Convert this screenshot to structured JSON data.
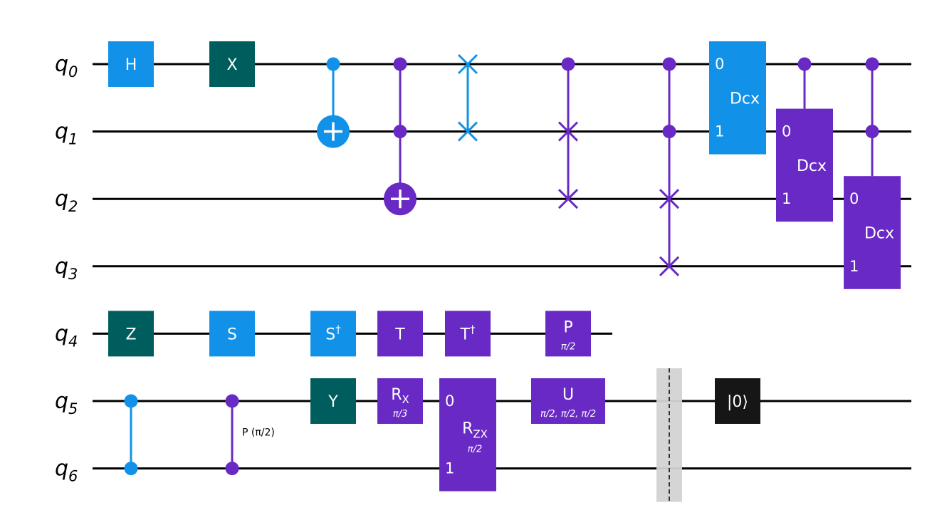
{
  "colors": {
    "blue": "#1192e8",
    "teal": "#005d5d",
    "purple": "#6929c4",
    "black": "#161616",
    "barrier": "#d3d3d3",
    "wire": "#000000"
  },
  "qubits": [
    {
      "base": "q",
      "index": "0"
    },
    {
      "base": "q",
      "index": "1"
    },
    {
      "base": "q",
      "index": "2"
    },
    {
      "base": "q",
      "index": "3"
    },
    {
      "base": "q",
      "index": "4"
    },
    {
      "base": "q",
      "index": "5"
    },
    {
      "base": "q",
      "index": "6"
    }
  ],
  "gates": [
    {
      "name": "gate-h",
      "type": "box",
      "col": 0,
      "qubit": 0,
      "label": "H",
      "color": "blue"
    },
    {
      "name": "gate-x",
      "type": "box",
      "col": 1,
      "qubit": 0,
      "label": "X",
      "color": "teal"
    },
    {
      "name": "gate-z",
      "type": "box",
      "col": 0,
      "qubit": 4,
      "label": "Z",
      "color": "teal"
    },
    {
      "name": "gate-s",
      "type": "box",
      "col": 1,
      "qubit": 4,
      "label": "S",
      "color": "blue"
    },
    {
      "name": "gate-sdg",
      "type": "box",
      "col": 2,
      "qubit": 4,
      "label": "S",
      "sup": "†",
      "color": "blue"
    },
    {
      "name": "gate-y",
      "type": "box",
      "col": 2,
      "qubit": 5,
      "label": "Y",
      "color": "teal"
    },
    {
      "name": "gate-t",
      "type": "box",
      "col": 3,
      "qubit": 4,
      "label": "T",
      "color": "purple"
    },
    {
      "name": "gate-rx",
      "type": "box",
      "col": 3,
      "qubit": 5,
      "label": "R",
      "sub": "X",
      "param": "π/3",
      "color": "purple"
    },
    {
      "name": "gate-tdg",
      "type": "box",
      "col": 4,
      "qubit": 4,
      "label": "T",
      "sup": "†",
      "color": "purple"
    },
    {
      "name": "gate-p",
      "type": "box",
      "col": 5,
      "qubit": 4,
      "label": "P",
      "param": "π/2",
      "color": "purple"
    },
    {
      "name": "gate-u",
      "type": "box",
      "col": 5,
      "qubit": 5,
      "label": "U",
      "param": "π/2, π/2, π/2",
      "color": "purple",
      "wide": true
    },
    {
      "name": "gate-reset",
      "type": "box",
      "col": 7,
      "qubit": 5,
      "label": "|0⟩",
      "color": "black"
    },
    {
      "name": "gate-cx",
      "type": "cx",
      "col": 2,
      "controls": [
        0
      ],
      "target": 1,
      "color": "blue"
    },
    {
      "name": "gate-ccx",
      "type": "cx",
      "col": 3,
      "controls": [
        0,
        1
      ],
      "target": 2,
      "color": "purple"
    },
    {
      "name": "gate-swap",
      "type": "swap",
      "col": 4,
      "controls": [],
      "targets": [
        0,
        1
      ],
      "color": "blue"
    },
    {
      "name": "gate-cswap",
      "type": "swap",
      "col": 5,
      "controls": [
        0
      ],
      "targets": [
        1,
        2
      ],
      "color": "purple"
    },
    {
      "name": "gate-ccswap",
      "type": "swap",
      "col": 6,
      "controls": [
        0,
        1
      ],
      "targets": [
        2,
        3
      ],
      "color": "purple"
    },
    {
      "name": "gate-cz",
      "type": "cz",
      "col": 0,
      "qubits": [
        5,
        6
      ],
      "color": "blue"
    },
    {
      "name": "gate-cp",
      "type": "cz",
      "col": 1,
      "qubits": [
        5,
        6
      ],
      "label": "P (π/2)",
      "color": "purple"
    },
    {
      "name": "gate-rzx",
      "type": "multi",
      "col": 4,
      "qubits": [
        5,
        6
      ],
      "label": "R",
      "sub": "ZX",
      "param": "π/2",
      "pins": [
        "0",
        "1"
      ],
      "color": "purple"
    },
    {
      "name": "gate-dcx-a",
      "type": "multi",
      "col": 7,
      "qubits": [
        0,
        1
      ],
      "label": "Dcx",
      "pins": [
        "0",
        "1"
      ],
      "color": "blue"
    },
    {
      "name": "gate-dcx-b",
      "type": "multi",
      "col": 8,
      "controls": [
        0
      ],
      "qubits": [
        1,
        2
      ],
      "label": "Dcx",
      "pins": [
        "0",
        "1"
      ],
      "color": "purple"
    },
    {
      "name": "gate-dcx-c",
      "type": "multi",
      "col": 9,
      "controls": [
        0,
        1
      ],
      "qubits": [
        2,
        3
      ],
      "label": "Dcx",
      "pins": [
        "0",
        "1"
      ],
      "color": "purple"
    },
    {
      "name": "barrier",
      "type": "barrier",
      "col": 6,
      "qubits": [
        5,
        6
      ],
      "color": "barrier"
    }
  ]
}
